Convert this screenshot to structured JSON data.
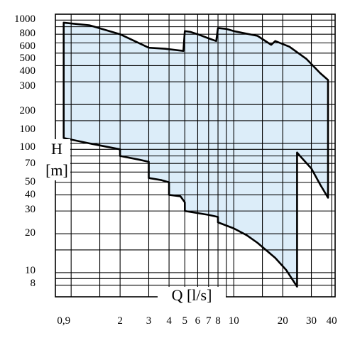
{
  "chart_data": {
    "type": "area",
    "title": "",
    "xlabel": "Q [l/s]",
    "ylabel": "H [m]",
    "x_scale": "log",
    "y_scale": "log",
    "xlim": [
      0.8,
      42
    ],
    "ylim": [
      6.5,
      1000
    ],
    "x_ticks": [
      0.9,
      2,
      3,
      4,
      5,
      6,
      7,
      8,
      10,
      20,
      30,
      40
    ],
    "x_tick_labels": [
      "0,9",
      "2",
      "3",
      "4",
      "5",
      "6",
      "7",
      "8",
      "10",
      "20",
      "30",
      "40"
    ],
    "y_ticks_upper": [
      1000,
      800,
      600,
      500,
      400,
      300,
      200,
      100
    ],
    "y_ticks_lower": [
      100,
      70,
      50,
      40,
      30,
      20,
      10,
      8
    ],
    "y_tick_labels_upper": [
      "1000",
      "800",
      "600",
      "500",
      "400",
      "300",
      "200",
      "100"
    ],
    "y_tick_labels_lower": [
      "100",
      "70",
      "50",
      "40",
      "30",
      "20",
      "10",
      "8"
    ],
    "grid": true,
    "fill_color": "#dcedf9",
    "line_color": "#000000",
    "series": [
      {
        "values_note": "",
        "upper_boundary": [
          [
            0.9,
            860
          ],
          [
            1.3,
            820
          ],
          [
            2.0,
            700
          ],
          [
            2.6,
            600
          ],
          [
            3.0,
            550
          ],
          [
            3.8,
            540
          ],
          [
            4.9,
            520
          ],
          [
            5.0,
            740
          ],
          [
            5.4,
            730
          ],
          [
            6.0,
            700
          ],
          [
            7.0,
            650
          ],
          [
            7.8,
            620
          ],
          [
            8.0,
            780
          ],
          [
            9.0,
            770
          ],
          [
            10.0,
            740
          ],
          [
            14.0,
            680
          ],
          [
            17.0,
            580
          ],
          [
            18.0,
            620
          ],
          [
            22.0,
            560
          ],
          [
            28.0,
            450
          ],
          [
            34.0,
            350
          ],
          [
            38.0,
            310
          ]
        ],
        "right_boundary": [
          [
            38.0,
            310
          ],
          [
            38.0,
            38
          ],
          [
            34.0,
            48
          ],
          [
            30.0,
            64
          ],
          [
            26.0,
            78
          ],
          [
            24.5,
            85
          ],
          [
            24.5,
            7.8
          ]
        ],
        "lower_boundary": [
          [
            24.5,
            7.8
          ],
          [
            21.0,
            10.5
          ],
          [
            18.0,
            13
          ],
          [
            14.0,
            17
          ],
          [
            12.0,
            19.5
          ],
          [
            10.0,
            22
          ],
          [
            8.0,
            24.5
          ],
          [
            8.0,
            27
          ],
          [
            7.0,
            28
          ],
          [
            5.0,
            30
          ],
          [
            5.0,
            35
          ],
          [
            4.7,
            39
          ],
          [
            4.0,
            40
          ],
          [
            4.0,
            50
          ],
          [
            3.6,
            52
          ],
          [
            3.0,
            54
          ],
          [
            3.0,
            72
          ],
          [
            2.6,
            75
          ],
          [
            2.0,
            80
          ],
          [
            2.0,
            90
          ],
          [
            1.3,
            100
          ],
          [
            0.9,
            110
          ],
          [
            0.9,
            860
          ]
        ]
      }
    ]
  }
}
